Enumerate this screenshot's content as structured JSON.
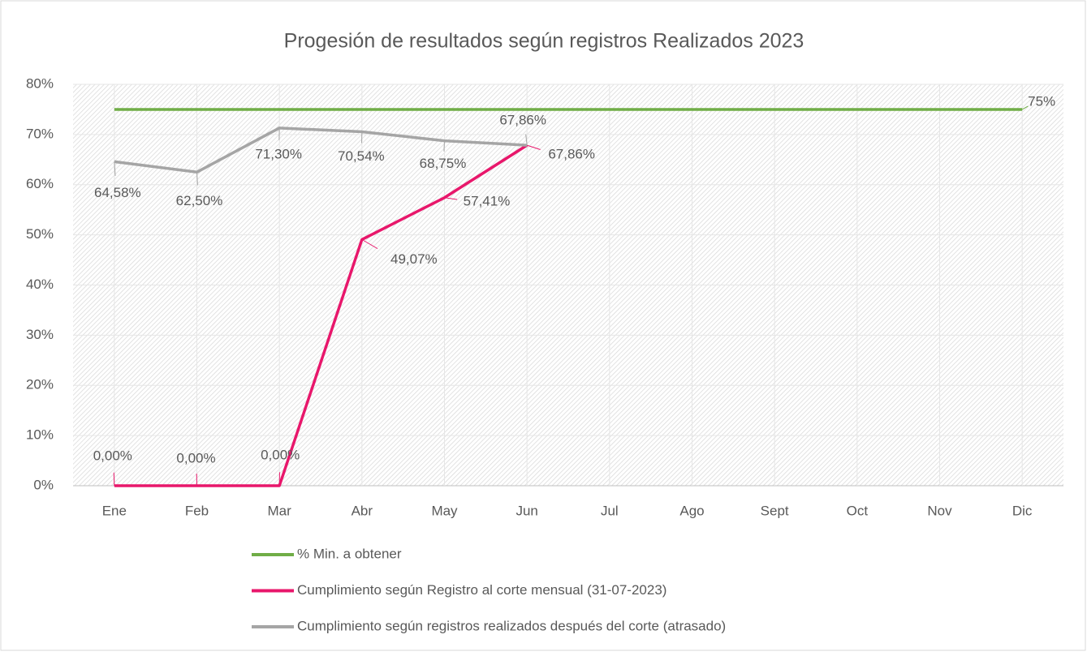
{
  "chart_data": {
    "type": "line",
    "title": "Progesión de resultados según registros Realizados 2023",
    "categories": [
      "Ene",
      "Feb",
      "Mar",
      "Abr",
      "May",
      "Jun",
      "Jul",
      "Ago",
      "Sept",
      "Oct",
      "Nov",
      "Dic"
    ],
    "ylim": [
      0,
      80
    ],
    "yticks": [
      {
        "value": 0,
        "label": "0%"
      },
      {
        "value": 10,
        "label": "10%"
      },
      {
        "value": 20,
        "label": "20%"
      },
      {
        "value": 30,
        "label": "30%"
      },
      {
        "value": 40,
        "label": "40%"
      },
      {
        "value": 50,
        "label": "50%"
      },
      {
        "value": 60,
        "label": "60%"
      },
      {
        "value": 70,
        "label": "70%"
      },
      {
        "value": 80,
        "label": "80%"
      }
    ],
    "grid": true,
    "legend": "bottom",
    "series": [
      {
        "name": "% Min. a obtener",
        "color": "#70ad47",
        "values": [
          75,
          75,
          75,
          75,
          75,
          75,
          75,
          75,
          75,
          75,
          75,
          75
        ],
        "value_labels": [
          null,
          null,
          null,
          null,
          null,
          null,
          null,
          null,
          null,
          null,
          null,
          "75%"
        ]
      },
      {
        "name": "Cumplimiento según Registro al corte  mensual (31-07-2023)",
        "color": "#e8176b",
        "values": [
          0,
          0,
          0,
          49.07,
          57.41,
          67.86,
          null,
          null,
          null,
          null,
          null,
          null
        ],
        "value_labels": [
          "0,00%",
          "0,00%",
          "0,00%",
          "49,07%",
          "57,41%",
          "67,86%",
          null,
          null,
          null,
          null,
          null,
          null
        ]
      },
      {
        "name": "Cumplimiento según registros realizados después del corte (atrasado)",
        "color": "#a5a5a5",
        "values": [
          64.58,
          62.5,
          71.3,
          70.54,
          68.75,
          67.86,
          null,
          null,
          null,
          null,
          null,
          null
        ],
        "value_labels": [
          "64,58%",
          "62,50%",
          "71,30%",
          "70,54%",
          "68,75%",
          "67,86%",
          null,
          null,
          null,
          null,
          null,
          null
        ]
      }
    ]
  }
}
